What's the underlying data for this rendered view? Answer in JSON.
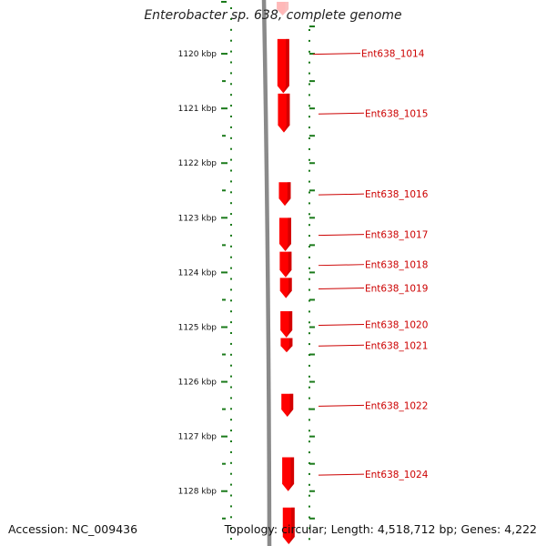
{
  "title": "Enterobacter sp. 638, complete genome",
  "accession_text": "Accession: NC_009436",
  "topology_text": "Topology: circular; Length: 4,518,712 bp; Genes: 4,222",
  "colors": {
    "backbone": "#8a8a8a",
    "gene_fill": "#ff0000",
    "gene_shade": "#b00000",
    "label": "#cc0000",
    "tick": "#1a7a1a"
  },
  "scale": {
    "unit": "kbp",
    "visible_start_kbp": 1119.05,
    "visible_end_kbp": 1128.97,
    "labels": [
      "1120 kbp",
      "1121 kbp",
      "1122 kbp",
      "1123 kbp",
      "1124 kbp",
      "1125 kbp",
      "1126 kbp",
      "1127 kbp",
      "1128 kbp"
    ],
    "label_values_kbp": [
      1120,
      1121,
      1122,
      1123,
      1124,
      1125,
      1126,
      1127,
      1128
    ]
  },
  "genes": [
    {
      "name": "",
      "start_kbp": 1119.05,
      "end_kbp": 1119.3,
      "strand": "-"
    },
    {
      "name": "Ent638_1014",
      "start_kbp": 1119.73,
      "end_kbp": 1120.72,
      "strand": "-"
    },
    {
      "name": "Ent638_1015",
      "start_kbp": 1120.73,
      "end_kbp": 1121.44,
      "strand": "-"
    },
    {
      "name": "Ent638_1016",
      "start_kbp": 1122.35,
      "end_kbp": 1122.78,
      "strand": "-"
    },
    {
      "name": "Ent638_1017",
      "start_kbp": 1123.0,
      "end_kbp": 1123.61,
      "strand": "-"
    },
    {
      "name": "Ent638_1018",
      "start_kbp": 1123.62,
      "end_kbp": 1124.09,
      "strand": "-"
    },
    {
      "name": "Ent638_1019",
      "start_kbp": 1124.1,
      "end_kbp": 1124.47,
      "strand": "-"
    },
    {
      "name": "Ent638_1020",
      "start_kbp": 1124.71,
      "end_kbp": 1125.19,
      "strand": "-"
    },
    {
      "name": "Ent638_1021",
      "start_kbp": 1125.2,
      "end_kbp": 1125.46,
      "strand": "-"
    },
    {
      "name": "Ent638_1022",
      "start_kbp": 1126.22,
      "end_kbp": 1126.64,
      "strand": "-"
    },
    {
      "name": "Ent638_1024",
      "start_kbp": 1127.38,
      "end_kbp": 1128.0,
      "strand": "-"
    },
    {
      "name": "",
      "start_kbp": 1128.3,
      "end_kbp": 1128.97,
      "strand": "-"
    }
  ]
}
